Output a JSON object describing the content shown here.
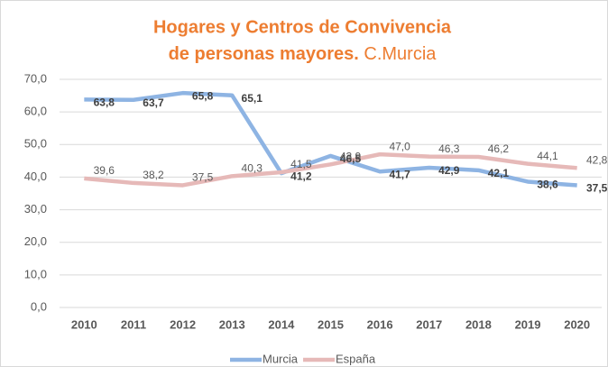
{
  "chart_data": {
    "type": "line",
    "title": "Hogares y Centros de Convivencia de personas mayores.",
    "subtitle": "C.Murcia",
    "categories": [
      "2010",
      "2011",
      "2012",
      "2013",
      "2014",
      "2015",
      "2016",
      "2017",
      "2018",
      "2019",
      "2020"
    ],
    "series": [
      {
        "name": "Murcia",
        "color": "#8eb4e3",
        "values": [
          63.8,
          63.7,
          65.8,
          65.1,
          41.2,
          46.5,
          41.7,
          42.9,
          42.1,
          38.6,
          37.5
        ],
        "value_labels": [
          "63,8",
          "63,7",
          "65,8",
          "65,1",
          "41,2",
          "46,5",
          "41,7",
          "42,9",
          "42,1",
          "38,6",
          "37,5"
        ]
      },
      {
        "name": "España",
        "color": "#e6b9b8",
        "values": [
          39.6,
          38.2,
          37.5,
          40.3,
          41.5,
          43.9,
          47.0,
          46.3,
          46.2,
          44.1,
          42.8
        ],
        "value_labels": [
          "39,6",
          "38,2",
          "37,5",
          "40,3",
          "41,5",
          "43,9",
          "47,0",
          "46,3",
          "46,2",
          "44,1",
          "42,8"
        ]
      }
    ],
    "ylim": [
      0,
      70
    ],
    "yticks": [
      {
        "value": 0,
        "label": "0,0"
      },
      {
        "value": 10,
        "label": "10,0"
      },
      {
        "value": 20,
        "label": "20,0"
      },
      {
        "value": 30,
        "label": "30,0"
      },
      {
        "value": 40,
        "label": "40,0"
      },
      {
        "value": 50,
        "label": "50,0"
      },
      {
        "value": 60,
        "label": "60,0"
      },
      {
        "value": 70,
        "label": "70,0"
      }
    ],
    "grid": true,
    "legend": "bottom"
  }
}
